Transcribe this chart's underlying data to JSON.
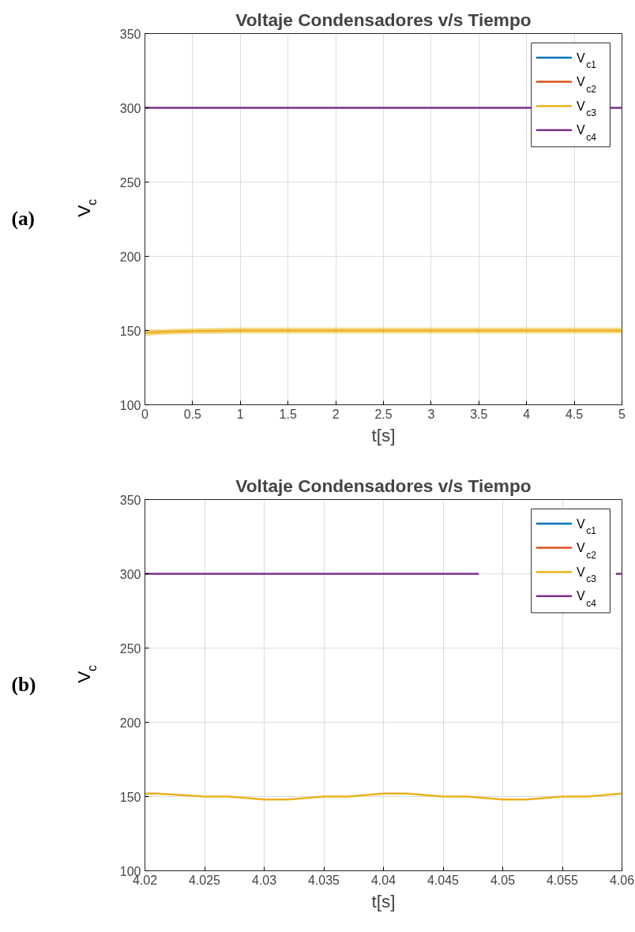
{
  "chart_data": [
    {
      "type": "line",
      "title": "Voltaje Condensadores v/s Tiempo",
      "xlabel": "t[s]",
      "ylabel": "V$_{c}$",
      "annotations": [
        "(a)"
      ],
      "x": [
        0,
        0.25,
        0.5,
        1,
        1.5,
        2,
        3,
        4,
        5
      ],
      "xlim": [
        0,
        5
      ],
      "ylim": [
        100,
        350
      ],
      "xticks": [
        0,
        0.5,
        1,
        1.5,
        2,
        2.5,
        3,
        3.5,
        4,
        4.5,
        5
      ],
      "yticks": [
        100,
        150,
        200,
        250,
        300,
        350
      ],
      "grid": true,
      "legend": "top right",
      "line_style": "solid",
      "series": [
        {
          "name": "V$_{c1}$",
          "color": "#0072bd",
          "values": [
            null,
            null,
            null,
            null,
            null,
            null,
            null,
            null,
            null
          ]
        },
        {
          "name": "V$_{c2}$",
          "color": "#d95319",
          "values": [
            null,
            null,
            null,
            null,
            null,
            null,
            null,
            null,
            null
          ]
        },
        {
          "name": "V$_{c3}$",
          "color": "#edb120",
          "values": [
            148.5,
            149.2,
            149.6,
            150,
            150,
            150,
            150,
            150,
            150
          ],
          "lower": [
            146.5,
            147.3,
            147.7,
            148,
            148,
            148,
            148,
            148,
            148
          ],
          "upper": [
            150.5,
            151.1,
            151.5,
            152,
            152,
            152,
            152,
            152,
            152
          ]
        },
        {
          "name": "V$_{c4}$",
          "color": "#7e2f8e",
          "values": [
            300,
            300,
            300,
            300,
            300,
            300,
            300,
            300,
            300
          ]
        }
      ]
    },
    {
      "type": "line",
      "title": "Voltaje Condensadores v/s Tiempo",
      "xlabel": "t[s]",
      "ylabel": "V$_{c}$",
      "annotations": [
        "(b)"
      ],
      "x": [
        4.02,
        4.021,
        4.025,
        4.027,
        4.03,
        4.032,
        4.035,
        4.037,
        4.04,
        4.042,
        4.045,
        4.047,
        4.05,
        4.052,
        4.055,
        4.057,
        4.06
      ],
      "xlim": [
        4.02,
        4.06
      ],
      "ylim": [
        100,
        350
      ],
      "xticks": [
        4.02,
        4.025,
        4.03,
        4.035,
        4.04,
        4.045,
        4.05,
        4.055,
        4.06
      ],
      "yticks": [
        100,
        150,
        200,
        250,
        300,
        350
      ],
      "grid": true,
      "legend": "top right",
      "line_style": "solid",
      "series": [
        {
          "name": "V$_{c1}$",
          "color": "#0072bd",
          "values": [
            null,
            null,
            null,
            null,
            null,
            null,
            null,
            null,
            null,
            null,
            null,
            null,
            null,
            null,
            null,
            null,
            null
          ]
        },
        {
          "name": "V$_{c2}$",
          "color": "#d95319",
          "values": [
            null,
            null,
            null,
            null,
            null,
            null,
            null,
            null,
            null,
            null,
            null,
            null,
            null,
            null,
            null,
            null,
            null
          ]
        },
        {
          "name": "V$_{c3}$",
          "color": "#edb120",
          "values": [
            152,
            152,
            150,
            150,
            148,
            148,
            150,
            150,
            152,
            152,
            150,
            150,
            148,
            148,
            150,
            150,
            152
          ]
        },
        {
          "name": "V$_{c4}$",
          "color": "#7e2f8e",
          "x": [
            4.02,
            4.03,
            4.04,
            4.048,
            4.052,
            4.0595,
            4.06
          ],
          "values": [
            300,
            300,
            300,
            300,
            null,
            300,
            300
          ]
        }
      ]
    }
  ]
}
